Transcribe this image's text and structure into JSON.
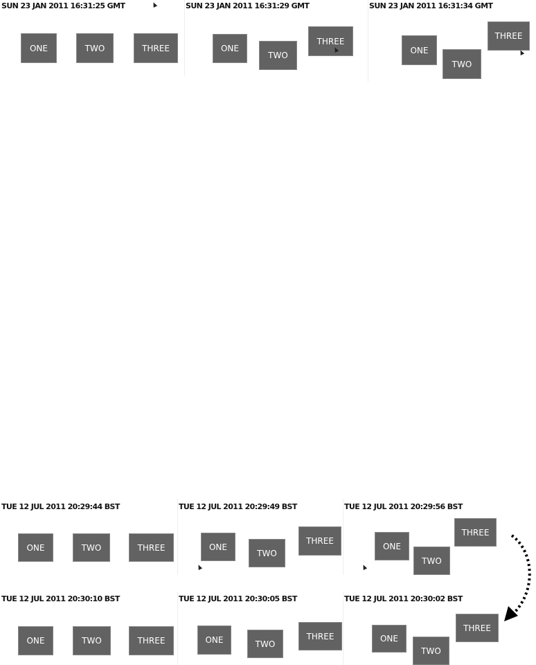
{
  "panels": [
    {
      "title": "SUN 23 JAN 2011 16:31:25 GMT",
      "buttons": [
        "ONE",
        "TWO",
        "THREE"
      ]
    },
    {
      "title": "SUN 23 JAN 2011 16:31:29 GMT",
      "buttons": [
        "ONE",
        "TWO",
        "THREE"
      ]
    },
    {
      "title": "SUN 23 JAN 2011 16:31:34 GMT",
      "buttons": [
        "ONE",
        "TWO",
        "THREE"
      ]
    },
    {
      "title": "TUE 12 JUL 2011 20:29:44 BST",
      "buttons": [
        "ONE",
        "TWO",
        "THREE"
      ]
    },
    {
      "title": "TUE 12 JUL 2011 20:29:49 BST",
      "buttons": [
        "ONE",
        "TWO",
        "THREE"
      ]
    },
    {
      "title": "TUE 12 JUL 2011 20:29:56 BST",
      "buttons": [
        "ONE",
        "TWO",
        "THREE"
      ]
    },
    {
      "title": "TUE 12 JUL 2011 20:30:10 BST",
      "buttons": [
        "ONE",
        "TWO",
        "THREE"
      ]
    },
    {
      "title": "TUE 12 JUL 2011 20:30:05 BST",
      "buttons": [
        "ONE",
        "TWO",
        "THREE"
      ]
    },
    {
      "title": "TUE 12 JUL 2011 20:30:02 BST",
      "buttons": [
        "ONE",
        "TWO",
        "THREE"
      ]
    }
  ],
  "colors": {
    "button": "#626262",
    "text": "#111111"
  },
  "arrow": {
    "style": "dotted",
    "icon": "curved-arrow-icon"
  }
}
